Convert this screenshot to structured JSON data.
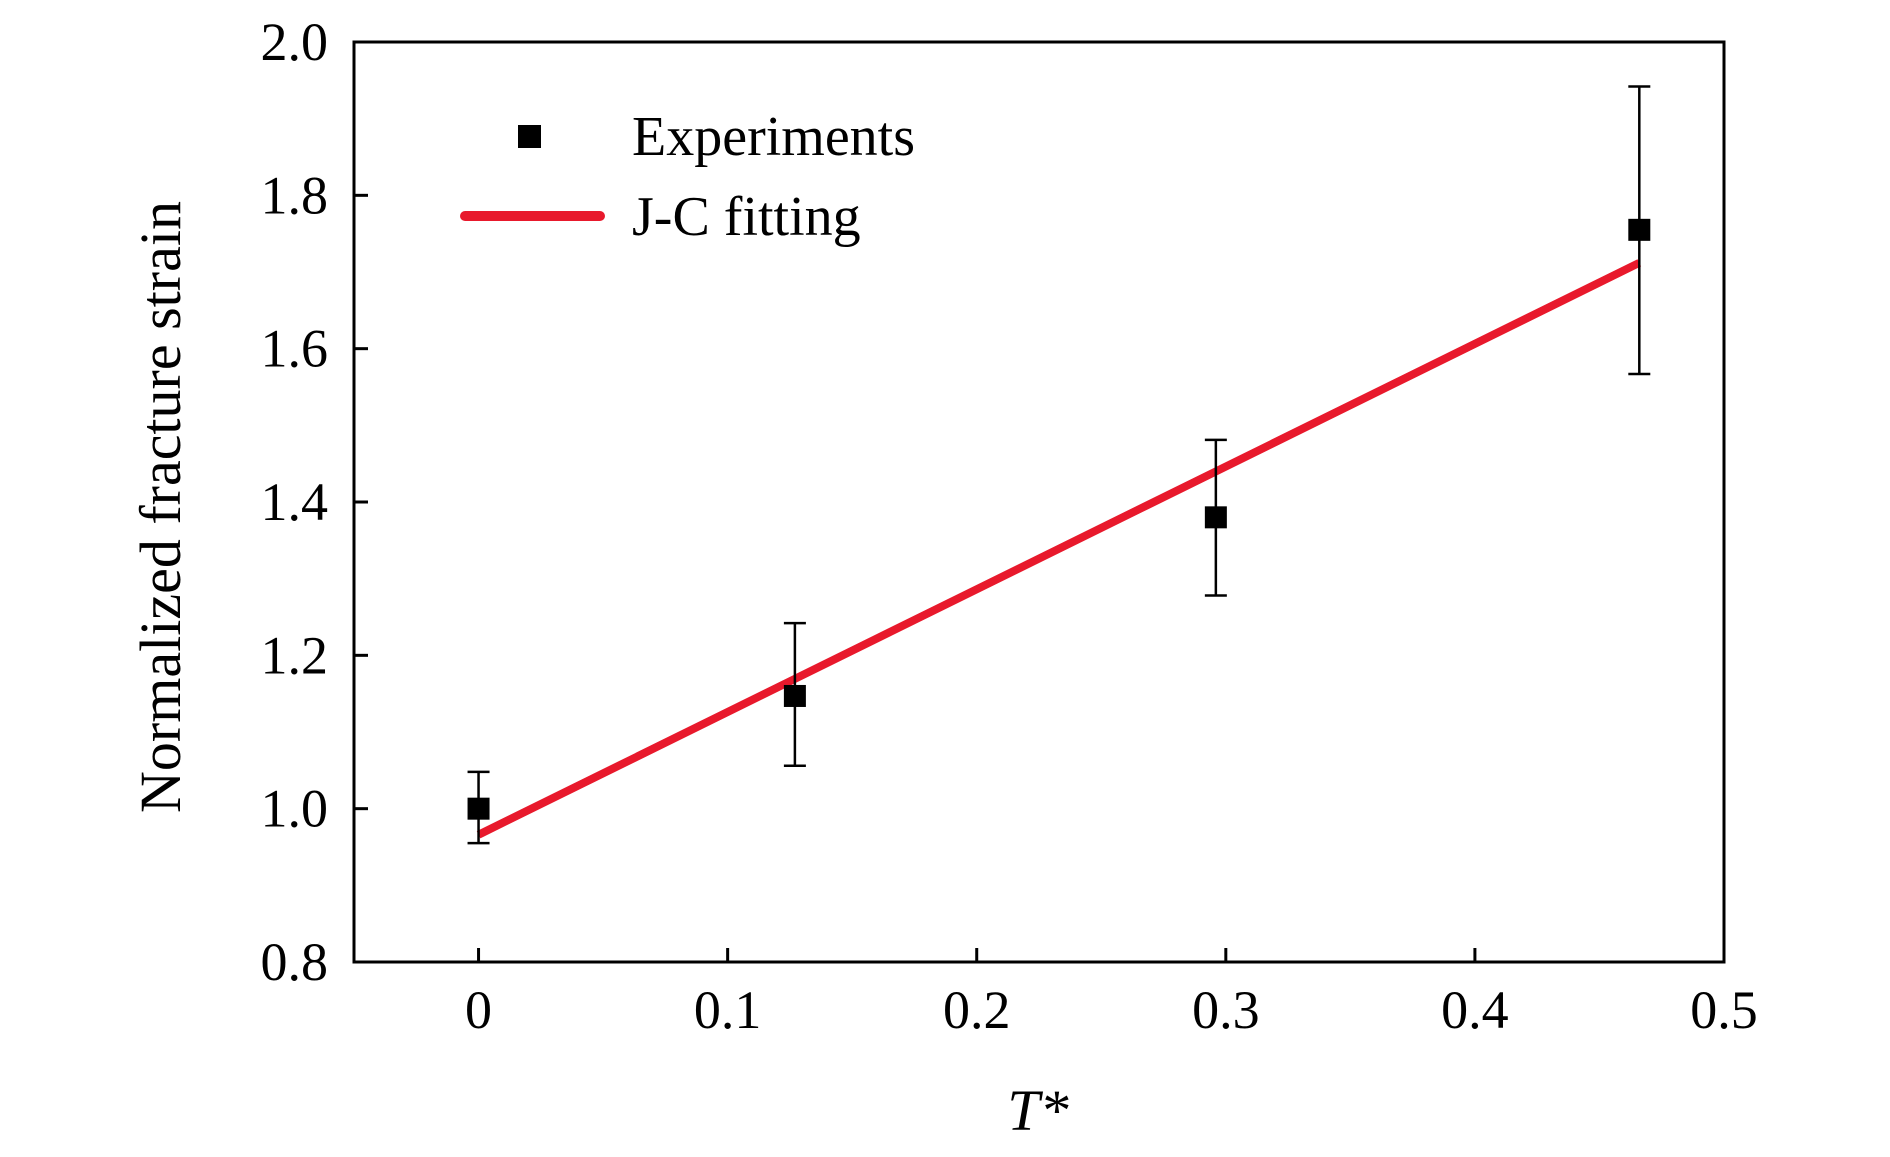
{
  "chart_data": {
    "type": "scatter",
    "xlabel": "T*",
    "ylabel": "Normalized fracture strain",
    "xlim": [
      -0.05,
      0.5
    ],
    "ylim": [
      0.8,
      2.0
    ],
    "x_ticks": [
      0,
      0.1,
      0.2,
      0.3,
      0.4,
      0.5
    ],
    "x_tick_labels": [
      "0",
      "0.1",
      "0.2",
      "0.3",
      "0.4",
      "0.5"
    ],
    "y_ticks": [
      0.8,
      1.0,
      1.2,
      1.4,
      1.6,
      1.8,
      2.0
    ],
    "y_tick_labels": [
      "0.8",
      "1.0",
      "1.2",
      "1.4",
      "1.6",
      "1.8",
      "2.0"
    ],
    "grid": false,
    "legend_position": "top-left",
    "series": [
      {
        "name": "Experiments",
        "kind": "scatter",
        "marker": "square",
        "color": "#000000",
        "points": [
          {
            "x": 0.0,
            "y": 1.0,
            "err_low": 0.955,
            "err_high": 1.048
          },
          {
            "x": 0.127,
            "y": 1.147,
            "err_low": 1.056,
            "err_high": 1.242
          },
          {
            "x": 0.296,
            "y": 1.38,
            "err_low": 1.278,
            "err_high": 1.481
          },
          {
            "x": 0.466,
            "y": 1.755,
            "err_low": 1.567,
            "err_high": 1.942
          }
        ]
      },
      {
        "name": "J-C fitting",
        "kind": "line",
        "color": "#e8192c",
        "x": [
          0.0,
          0.466
        ],
        "y": [
          0.966,
          1.712
        ]
      }
    ]
  }
}
